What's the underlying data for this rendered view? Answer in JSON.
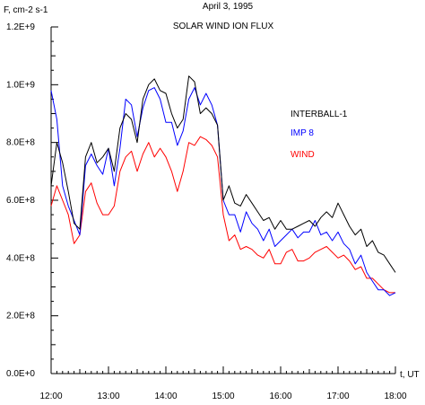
{
  "chart_data": {
    "type": "line",
    "title": "April 3, 1995",
    "subtitle": "SOLAR WIND ION FLUX",
    "ylabel": "F, cm-2 s-1",
    "xlabel": "t, UT",
    "xlim": [
      12.0,
      18.0
    ],
    "ylim": [
      0,
      1200000000.0
    ],
    "x_ticks": [
      "12:00",
      "13:00",
      "14:00",
      "15:00",
      "16:00",
      "17:00",
      "18:00"
    ],
    "y_ticks": [
      "0.0E+0",
      "2.0E+8",
      "4.0E+8",
      "6.0E+8",
      "8.0E+8",
      "1.0E+9",
      "1.2E+9"
    ],
    "grid": false,
    "legend_position": "right",
    "series": [
      {
        "name": "INTERBALL-1",
        "color": "#000000",
        "x": [
          12.0,
          12.1,
          12.2,
          12.3,
          12.4,
          12.5,
          12.6,
          12.7,
          12.8,
          12.9,
          13.0,
          13.1,
          13.2,
          13.3,
          13.4,
          13.5,
          13.6,
          13.7,
          13.8,
          13.9,
          14.0,
          14.1,
          14.2,
          14.3,
          14.4,
          14.5,
          14.6,
          14.7,
          14.8,
          14.9,
          15.0,
          15.1,
          15.2,
          15.3,
          15.4,
          15.5,
          15.6,
          15.7,
          15.8,
          15.9,
          16.0,
          16.1,
          16.2,
          16.3,
          16.4,
          16.5,
          16.6,
          16.7,
          16.8,
          16.9,
          17.0,
          17.1,
          17.2,
          17.3,
          17.4,
          17.5,
          17.6,
          17.7,
          17.8,
          17.9,
          18.0
        ],
        "values": [
          650000000.0,
          800000000.0,
          730000000.0,
          630000000.0,
          520000000.0,
          500000000.0,
          750000000.0,
          800000000.0,
          730000000.0,
          750000000.0,
          780000000.0,
          700000000.0,
          850000000.0,
          900000000.0,
          880000000.0,
          800000000.0,
          950000000.0,
          1000000000.0,
          1020000000.0,
          980000000.0,
          970000000.0,
          900000000.0,
          850000000.0,
          880000000.0,
          1030000000.0,
          1010000000.0,
          900000000.0,
          920000000.0,
          900000000.0,
          860000000.0,
          600000000.0,
          650000000.0,
          590000000.0,
          580000000.0,
          620000000.0,
          590000000.0,
          560000000.0,
          530000000.0,
          540000000.0,
          500000000.0,
          530000000.0,
          500000000.0,
          500000000.0,
          510000000.0,
          520000000.0,
          530000000.0,
          510000000.0,
          540000000.0,
          560000000.0,
          540000000.0,
          590000000.0,
          550000000.0,
          510000000.0,
          480000000.0,
          500000000.0,
          440000000.0,
          460000000.0,
          420000000.0,
          410000000.0,
          380000000.0,
          350000000.0
        ]
      },
      {
        "name": "IMP 8",
        "color": "#0000ff",
        "x": [
          12.0,
          12.1,
          12.2,
          12.3,
          12.4,
          12.5,
          12.6,
          12.7,
          12.8,
          12.9,
          13.0,
          13.1,
          13.2,
          13.3,
          13.4,
          13.5,
          13.6,
          13.7,
          13.8,
          13.9,
          14.0,
          14.1,
          14.2,
          14.3,
          14.4,
          14.5,
          14.6,
          14.7,
          14.8,
          14.9,
          15.0,
          15.1,
          15.2,
          15.3,
          15.4,
          15.5,
          15.6,
          15.7,
          15.8,
          15.9,
          16.0,
          16.1,
          16.2,
          16.3,
          16.4,
          16.5,
          16.6,
          16.7,
          16.8,
          16.9,
          17.0,
          17.1,
          17.2,
          17.3,
          17.4,
          17.5,
          17.6,
          17.7,
          17.8,
          17.9,
          18.0
        ],
        "values": [
          980000000.0,
          880000000.0,
          650000000.0,
          580000000.0,
          530000000.0,
          480000000.0,
          720000000.0,
          760000000.0,
          720000000.0,
          690000000.0,
          780000000.0,
          650000000.0,
          780000000.0,
          950000000.0,
          930000000.0,
          820000000.0,
          920000000.0,
          980000000.0,
          990000000.0,
          950000000.0,
          870000000.0,
          870000000.0,
          790000000.0,
          840000000.0,
          950000000.0,
          990000000.0,
          930000000.0,
          970000000.0,
          930000000.0,
          860000000.0,
          600000000.0,
          550000000.0,
          550000000.0,
          490000000.0,
          560000000.0,
          520000000.0,
          500000000.0,
          460000000.0,
          500000000.0,
          440000000.0,
          460000000.0,
          480000000.0,
          500000000.0,
          470000000.0,
          490000000.0,
          490000000.0,
          530000000.0,
          480000000.0,
          490000000.0,
          460000000.0,
          490000000.0,
          450000000.0,
          430000000.0,
          380000000.0,
          410000000.0,
          350000000.0,
          320000000.0,
          290000000.0,
          290000000.0,
          270000000.0,
          280000000.0
        ]
      },
      {
        "name": "WIND",
        "color": "#ff0000",
        "x": [
          12.0,
          12.1,
          12.2,
          12.3,
          12.4,
          12.5,
          12.6,
          12.7,
          12.8,
          12.9,
          13.0,
          13.1,
          13.2,
          13.3,
          13.4,
          13.5,
          13.6,
          13.7,
          13.8,
          13.9,
          14.0,
          14.1,
          14.2,
          14.3,
          14.4,
          14.5,
          14.6,
          14.7,
          14.8,
          14.9,
          15.0,
          15.1,
          15.2,
          15.3,
          15.4,
          15.5,
          15.6,
          15.7,
          15.8,
          15.9,
          16.0,
          16.1,
          16.2,
          16.3,
          16.4,
          16.5,
          16.6,
          16.7,
          16.8,
          16.9,
          17.0,
          17.1,
          17.2,
          17.3,
          17.4,
          17.5,
          17.6,
          17.7,
          17.8,
          17.9,
          18.0
        ],
        "values": [
          580000000.0,
          650000000.0,
          600000000.0,
          550000000.0,
          450000000.0,
          480000000.0,
          630000000.0,
          660000000.0,
          590000000.0,
          550000000.0,
          550000000.0,
          580000000.0,
          700000000.0,
          750000000.0,
          770000000.0,
          700000000.0,
          760000000.0,
          800000000.0,
          750000000.0,
          780000000.0,
          750000000.0,
          700000000.0,
          630000000.0,
          700000000.0,
          800000000.0,
          790000000.0,
          820000000.0,
          810000000.0,
          790000000.0,
          750000000.0,
          550000000.0,
          460000000.0,
          480000000.0,
          430000000.0,
          440000000.0,
          430000000.0,
          410000000.0,
          400000000.0,
          430000000.0,
          380000000.0,
          380000000.0,
          420000000.0,
          430000000.0,
          390000000.0,
          390000000.0,
          400000000.0,
          420000000.0,
          430000000.0,
          440000000.0,
          420000000.0,
          400000000.0,
          410000000.0,
          390000000.0,
          360000000.0,
          370000000.0,
          330000000.0,
          330000000.0,
          310000000.0,
          290000000.0,
          280000000.0,
          280000000.0
        ]
      }
    ]
  }
}
